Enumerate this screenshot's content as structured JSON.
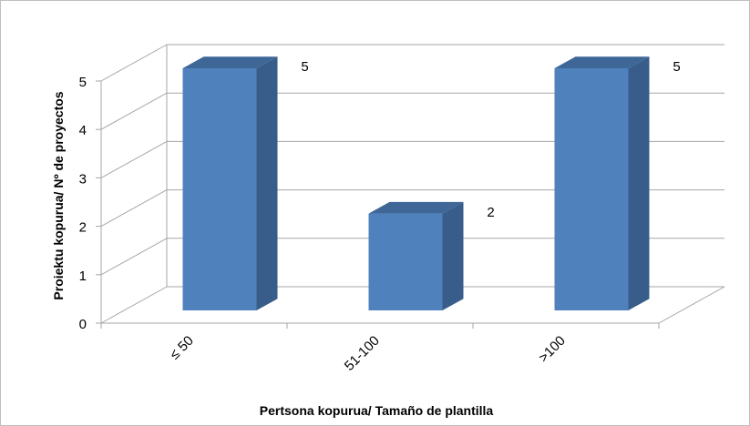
{
  "chart_data": {
    "type": "bar",
    "style": "3d-column",
    "categories": [
      "≤ 50",
      "51-100",
      ">100"
    ],
    "values": [
      5,
      2,
      5
    ],
    "data_labels": [
      "5",
      "2",
      "5"
    ],
    "title": "",
    "xlabel": "Pertsona kopurua/ Tamaño de plantilla",
    "ylabel": "Proiektu kopurua/ Nº de proyectos",
    "ylim": [
      0,
      5
    ],
    "yticks": [
      "0",
      "1",
      "2",
      "3",
      "4",
      "5"
    ],
    "grid": true,
    "legend": "none",
    "colors": {
      "bar_front": "#4f81bd",
      "bar_side": "#385d8a",
      "bar_top": "#3e6797",
      "grid": "#a6a6a6"
    }
  }
}
